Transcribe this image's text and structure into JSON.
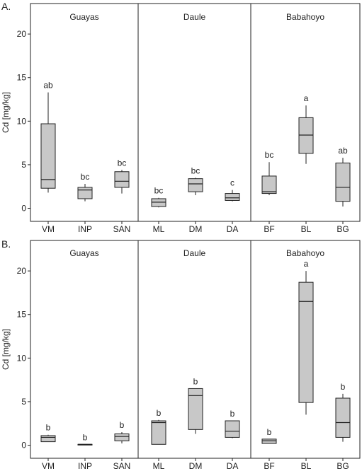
{
  "chart_data": [
    {
      "type": "boxplot",
      "panel_label": "A.",
      "ylabel": "Cd [mg/kg]",
      "ylim": [
        -1.5,
        23.5
      ],
      "yticks": [
        0,
        5,
        10,
        15,
        20
      ],
      "ytick_labels": [
        "0",
        "5",
        "10",
        "15",
        "20"
      ],
      "categories": [
        "VM",
        "INP",
        "SAN",
        "ML",
        "DM",
        "DA",
        "BF",
        "BL",
        "BG"
      ],
      "groups": [
        {
          "name": "Guayas",
          "members": [
            "VM",
            "INP",
            "SAN"
          ]
        },
        {
          "name": "Daule",
          "members": [
            "ML",
            "DM",
            "DA"
          ]
        },
        {
          "name": "Babahoyo",
          "members": [
            "BF",
            "BL",
            "BG"
          ]
        }
      ],
      "boxes": [
        {
          "category": "VM",
          "min": 1.8,
          "q1": 2.3,
          "median": 3.3,
          "q3": 9.7,
          "max": 13.3,
          "letter": "ab"
        },
        {
          "category": "INP",
          "min": 0.8,
          "q1": 1.1,
          "median": 2.1,
          "q3": 2.4,
          "max": 2.8,
          "letter": "bc"
        },
        {
          "category": "SAN",
          "min": 1.7,
          "q1": 2.4,
          "median": 3.1,
          "q3": 4.2,
          "max": 4.4,
          "letter": "bc"
        },
        {
          "category": "ML",
          "min": 0.1,
          "q1": 0.2,
          "median": 0.7,
          "q3": 1.1,
          "max": 1.2,
          "letter": "bc"
        },
        {
          "category": "DM",
          "min": 1.5,
          "q1": 1.9,
          "median": 2.8,
          "q3": 3.4,
          "max": 3.5,
          "letter": "bc"
        },
        {
          "category": "DA",
          "min": 0.8,
          "q1": 0.9,
          "median": 1.2,
          "q3": 1.7,
          "max": 2.1,
          "letter": "c"
        },
        {
          "category": "BF",
          "min": 1.5,
          "q1": 1.7,
          "median": 1.9,
          "q3": 3.7,
          "max": 5.3,
          "letter": "bc"
        },
        {
          "category": "BL",
          "min": 5.1,
          "q1": 6.3,
          "median": 8.4,
          "q3": 10.4,
          "max": 11.8,
          "letter": "a"
        },
        {
          "category": "BG",
          "min": 0.2,
          "q1": 0.8,
          "median": 2.4,
          "q3": 5.2,
          "max": 5.8,
          "letter": "ab"
        }
      ]
    },
    {
      "type": "boxplot",
      "panel_label": "B.",
      "ylabel": "Cd [mg/kg]",
      "ylim": [
        -1.5,
        23.5
      ],
      "yticks": [
        0,
        5,
        10,
        15,
        20
      ],
      "ytick_labels": [
        "0",
        "5",
        "10",
        "15",
        "20"
      ],
      "categories": [
        "VM",
        "INP",
        "SAN",
        "ML",
        "DM",
        "DA",
        "BF",
        "BL",
        "BG"
      ],
      "groups": [
        {
          "name": "Guayas",
          "members": [
            "VM",
            "INP",
            "SAN"
          ]
        },
        {
          "name": "Daule",
          "members": [
            "ML",
            "DM",
            "DA"
          ]
        },
        {
          "name": "Babahoyo",
          "members": [
            "BF",
            "BL",
            "BG"
          ]
        }
      ],
      "boxes": [
        {
          "category": "VM",
          "min": 0.4,
          "q1": 0.4,
          "median": 0.9,
          "q3": 1.1,
          "max": 1.2,
          "letter": "b"
        },
        {
          "category": "INP",
          "min": 0.1,
          "q1": 0.1,
          "median": 0.1,
          "q3": 0.1,
          "max": 0.1,
          "letter": "b"
        },
        {
          "category": "SAN",
          "min": 0.2,
          "q1": 0.5,
          "median": 1.0,
          "q3": 1.3,
          "max": 1.5,
          "letter": "b"
        },
        {
          "category": "ML",
          "min": 0.1,
          "q1": 0.1,
          "median": 2.6,
          "q3": 2.8,
          "max": 2.9,
          "letter": "b"
        },
        {
          "category": "DM",
          "min": 1.3,
          "q1": 1.8,
          "median": 5.7,
          "q3": 6.5,
          "max": 6.5,
          "letter": "b"
        },
        {
          "category": "DA",
          "min": 0.8,
          "q1": 0.9,
          "median": 1.6,
          "q3": 2.8,
          "max": 2.8,
          "letter": "b"
        },
        {
          "category": "BF",
          "min": 0.2,
          "q1": 0.2,
          "median": 0.5,
          "q3": 0.7,
          "max": 0.7,
          "letter": "b"
        },
        {
          "category": "BL",
          "min": 3.5,
          "q1": 4.9,
          "median": 16.5,
          "q3": 18.7,
          "max": 20.0,
          "letter": "a"
        },
        {
          "category": "BG",
          "min": 0.4,
          "q1": 0.9,
          "median": 2.6,
          "q3": 5.4,
          "max": 5.9,
          "letter": "b"
        }
      ]
    }
  ],
  "colors": {
    "box_fill": "#c8c8c8",
    "line": "#222222",
    "frame": "#222222",
    "text": "#222222"
  }
}
